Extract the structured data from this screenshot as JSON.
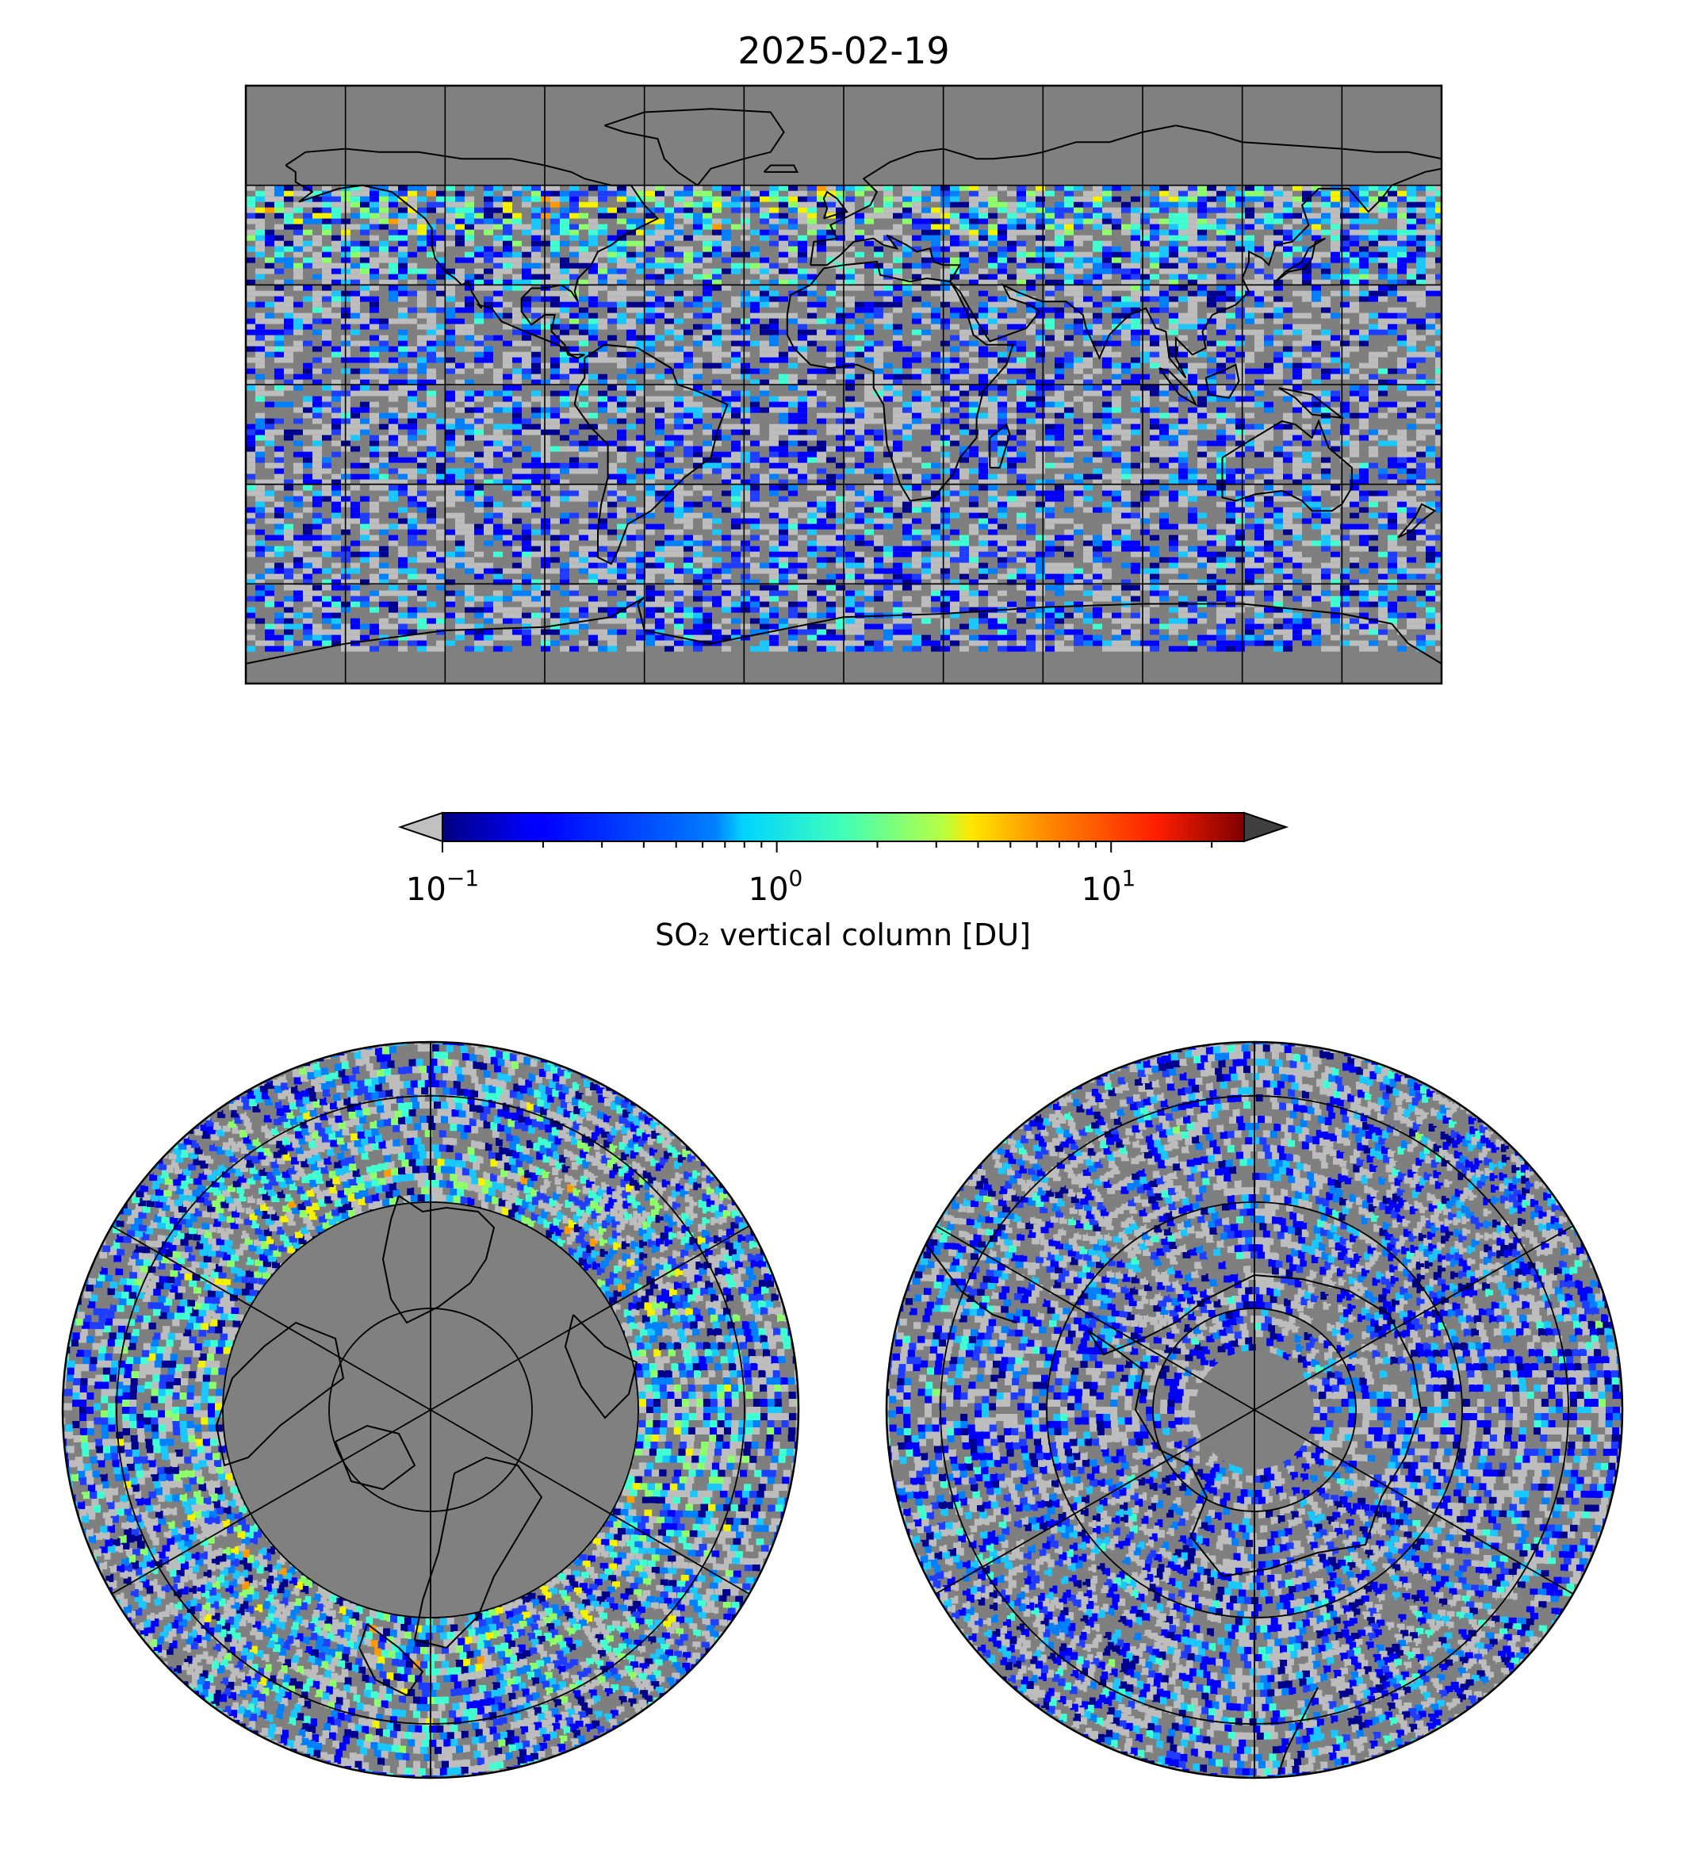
{
  "title": "2025-02-19",
  "colorbar": {
    "label": "SO₂ vertical column [DU]",
    "scale": "log",
    "vmin": 0.1,
    "vmax": 25,
    "extend": "both",
    "ticks": [
      {
        "value": 0.1,
        "base": "10",
        "exp": "−1"
      },
      {
        "value": 1,
        "base": "10",
        "exp": "0"
      },
      {
        "value": 10,
        "base": "10",
        "exp": "1"
      }
    ],
    "colormap": "jet",
    "under_color": "#c0c0c0",
    "over_color": "#404040"
  },
  "colors": {
    "no_data": "#808080",
    "below_range": "#c0c0c0",
    "gray_dark": "#7f7f7f",
    "gray_light": "#bdbdbd",
    "frame": "#000000"
  },
  "maps": [
    {
      "name": "global",
      "projection": "plate-carree",
      "gridlines": true,
      "coastlines": true
    },
    {
      "name": "north-polar",
      "projection": "north-polar-stereographic",
      "gridlines": true,
      "coastlines": true
    },
    {
      "name": "south-polar",
      "projection": "south-polar-stereographic",
      "gridlines": true,
      "coastlines": true
    }
  ]
}
